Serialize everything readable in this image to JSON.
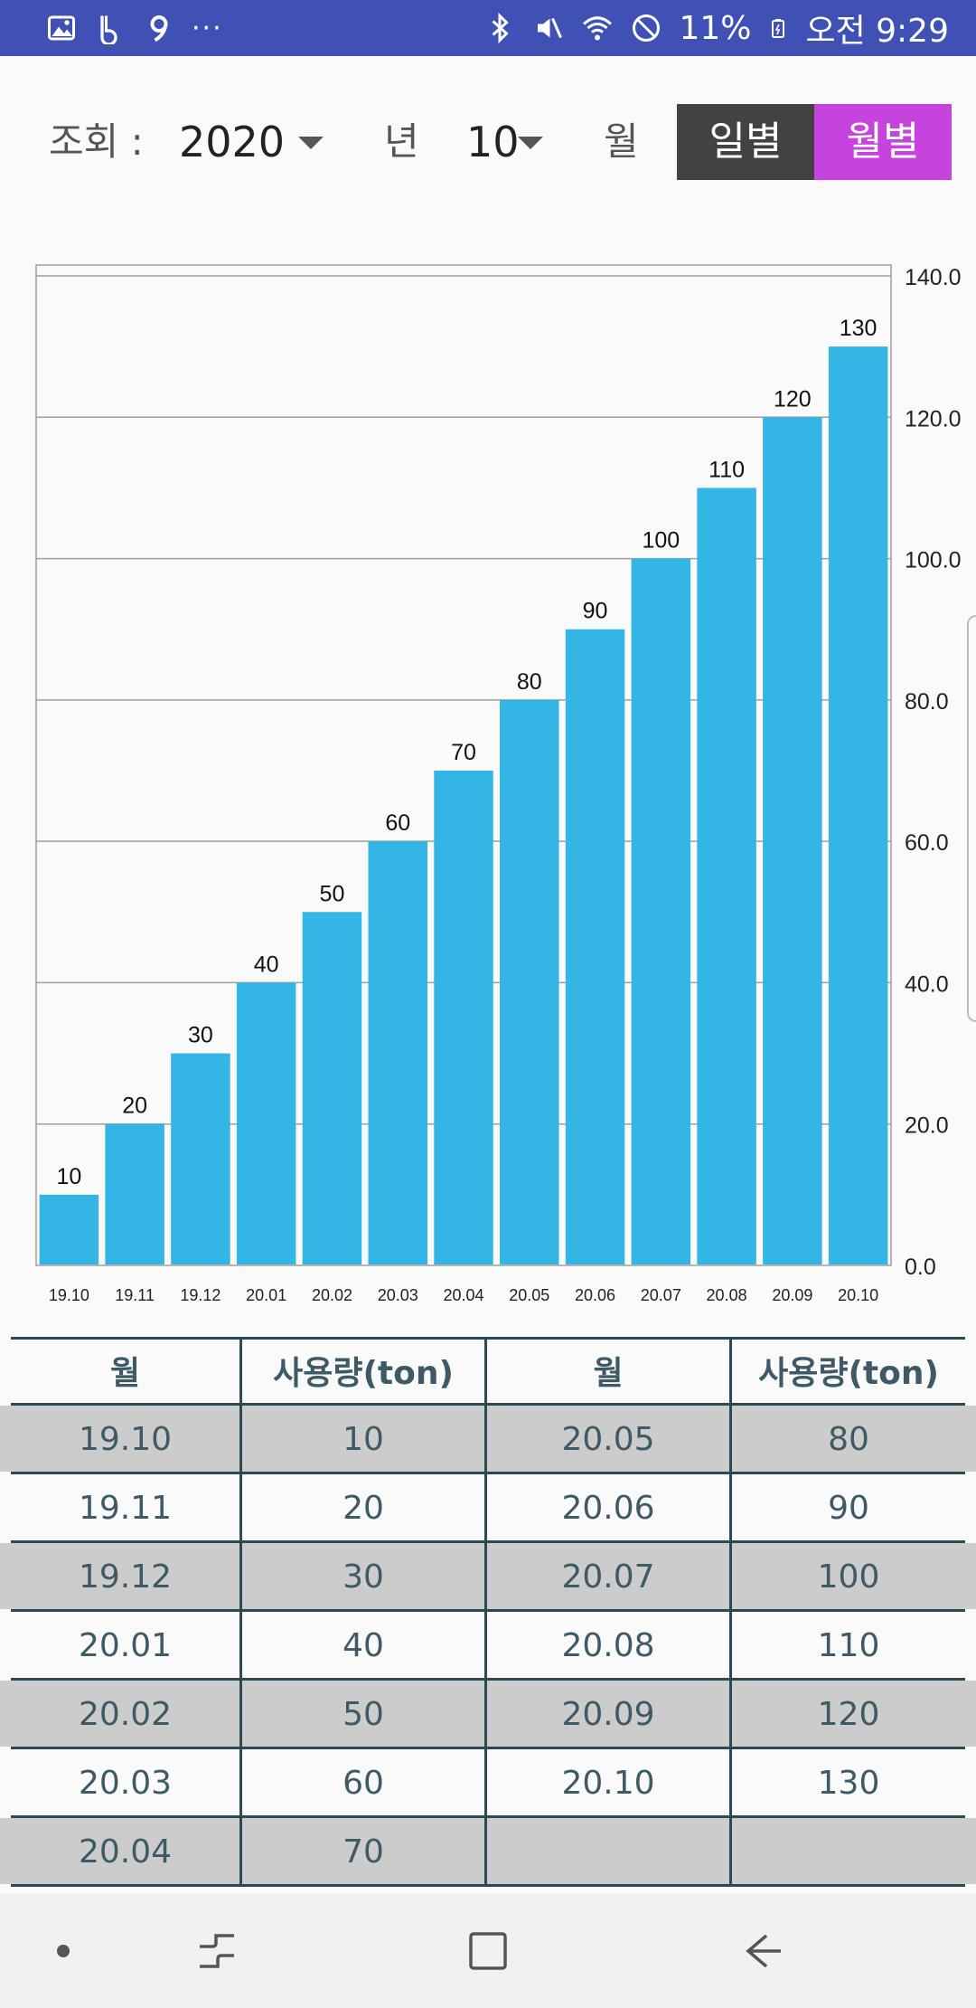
{
  "status_bar": {
    "icons_left": [
      "gallery-icon",
      "b-app-icon",
      "nine-app-icon",
      "more-notifications-icon"
    ],
    "more_label": "···",
    "icons_right": [
      "bluetooth-icon",
      "mute-icon",
      "wifi-icon",
      "block-icon",
      "battery-icon"
    ],
    "battery": "11%",
    "time": "오전 9:29",
    "bg_color": "#3f51b5"
  },
  "controls": {
    "query_label": "조회 :",
    "year_value": "2020",
    "year_unit": "년",
    "month_value": "10",
    "month_unit": "월",
    "daily_label": "일별",
    "monthly_label": "월별",
    "daily_color": "#424242",
    "monthly_color": "#c644dd"
  },
  "chart_data": {
    "type": "bar",
    "categories": [
      "19.10",
      "19.11",
      "19.12",
      "20.01",
      "20.02",
      "20.03",
      "20.04",
      "20.05",
      "20.06",
      "20.07",
      "20.08",
      "20.09",
      "20.10"
    ],
    "values": [
      10,
      20,
      30,
      40,
      50,
      60,
      70,
      80,
      90,
      100,
      110,
      120,
      130
    ],
    "ylim": [
      0,
      140
    ],
    "y_ticks": [
      "0.0",
      "20.0",
      "40.0",
      "60.0",
      "80.0",
      "100.0",
      "120.0",
      "140.0"
    ],
    "y_axis_side": "right",
    "grid": true,
    "bar_color": "#33b5e5"
  },
  "table": {
    "headers": [
      "월",
      "사용량(ton)",
      "월",
      "사용량(ton)"
    ],
    "rows": [
      [
        "19.10",
        "10",
        "20.05",
        "80"
      ],
      [
        "19.11",
        "20",
        "20.06",
        "90"
      ],
      [
        "19.12",
        "30",
        "20.07",
        "100"
      ],
      [
        "20.01",
        "40",
        "20.08",
        "110"
      ],
      [
        "20.02",
        "50",
        "20.09",
        "120"
      ],
      [
        "20.03",
        "60",
        "20.10",
        "130"
      ],
      [
        "20.04",
        "70",
        "",
        ""
      ]
    ]
  },
  "nav_bar": {
    "items": [
      "dot-icon",
      "recent-apps-icon",
      "home-icon",
      "back-icon"
    ]
  }
}
